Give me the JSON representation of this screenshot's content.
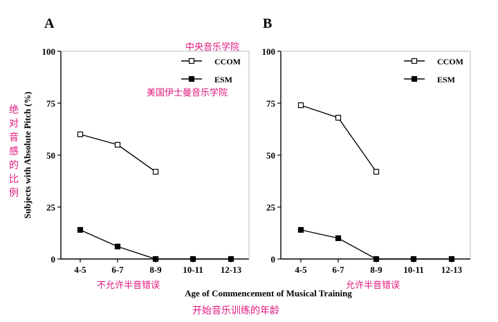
{
  "colors": {
    "axis": "#000000",
    "annotation": "#e0197d"
  },
  "annotations": {
    "ccom_cn": "中央音乐学院",
    "esm_cn": "美国伊士曼音乐学院",
    "ylabel_cn": "绝对音感的比例",
    "xlabel_cn": "开始音乐训练的年龄",
    "panelA_note_cn": "不允许半音错误",
    "panelB_note_cn": "允许半音错误"
  },
  "chart_data": [
    {
      "type": "line",
      "panel": "A",
      "categories": [
        "4-5",
        "6-7",
        "8-9",
        "10-11",
        "12-13"
      ],
      "ylim": [
        0,
        100
      ],
      "yticks": [
        0,
        25,
        50,
        75,
        100
      ],
      "ylabel": "Subjects with Absolute Pitch (%)",
      "xlabel": "Age of Commencement of Musical Training",
      "legend_position": "top-right",
      "grid": false,
      "series": [
        {
          "name": "CCOM",
          "marker": "open-square",
          "values": [
            60,
            55,
            42,
            null,
            null
          ]
        },
        {
          "name": "ESM",
          "marker": "filled-square",
          "values": [
            14,
            6,
            0,
            0,
            0
          ]
        }
      ]
    },
    {
      "type": "line",
      "panel": "B",
      "categories": [
        "4-5",
        "6-7",
        "8-9",
        "10-11",
        "12-13"
      ],
      "ylim": [
        0,
        100
      ],
      "yticks": [
        0,
        25,
        50,
        75,
        100
      ],
      "legend_position": "top-right",
      "grid": false,
      "series": [
        {
          "name": "CCOM",
          "marker": "open-square",
          "values": [
            74,
            68,
            42,
            null,
            null
          ]
        },
        {
          "name": "ESM",
          "marker": "filled-square",
          "values": [
            14,
            10,
            0,
            0,
            0
          ]
        }
      ]
    }
  ]
}
